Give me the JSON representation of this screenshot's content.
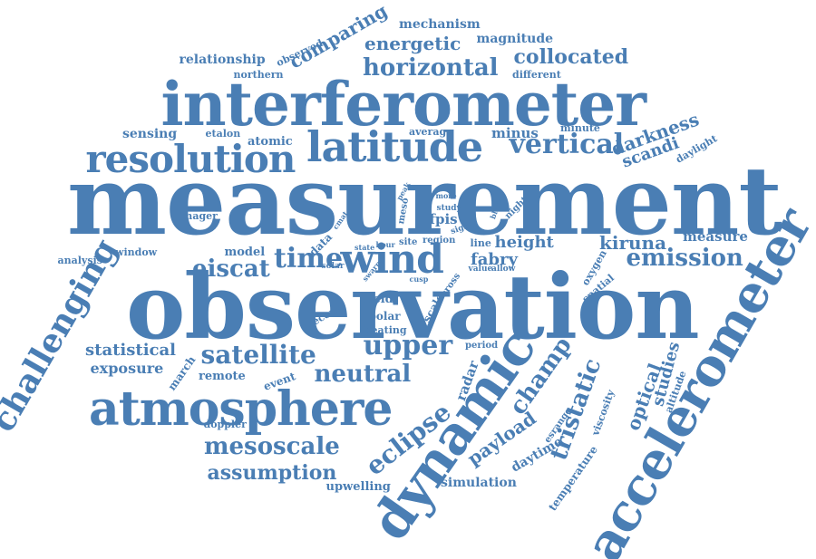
{
  "colors": {
    "word": "#4a7eb4",
    "background": "#ffffff"
  },
  "words": [
    "measurement",
    "observation",
    "interferometer",
    "accelerometer",
    "dynamic",
    "atmosphere",
    "latitude",
    "resolution",
    "horizontal",
    "wind",
    "challenging",
    "vertical",
    "upper",
    "satellite",
    "neutral",
    "time",
    "emission",
    "eclipse",
    "mesoscale",
    "tristatic",
    "champ",
    "eiscat",
    "assumption",
    "collocated",
    "energetic",
    "comparing",
    "kiruna",
    "height",
    "fabry",
    "darkness",
    "optical",
    "payload",
    "scandi",
    "studies",
    "statistical",
    "exposure",
    "minus",
    "measure",
    "relationship",
    "mechanism",
    "magnitude",
    "sensing",
    "atomic",
    "radar",
    "upwelling",
    "simulation",
    "daytime",
    "fpis",
    "remote",
    "march",
    "event",
    "field",
    "polar",
    "heating",
    "model",
    "imager",
    "window",
    "analysis",
    "etalon",
    "average",
    "minute",
    "northern",
    "observed",
    "different",
    "daylight",
    "oxygen",
    "spatial",
    "temperature",
    "viscosity",
    "altitude",
    "doppler",
    "second",
    "scale",
    "cross",
    "esrange",
    "period",
    "line",
    "value",
    "allow",
    "data",
    "solar",
    "state",
    "hour",
    "site",
    "region",
    "swarm",
    "sight",
    "study",
    "night",
    "black",
    "meso",
    "more",
    "peak",
    "cusp",
    "cmat"
  ]
}
